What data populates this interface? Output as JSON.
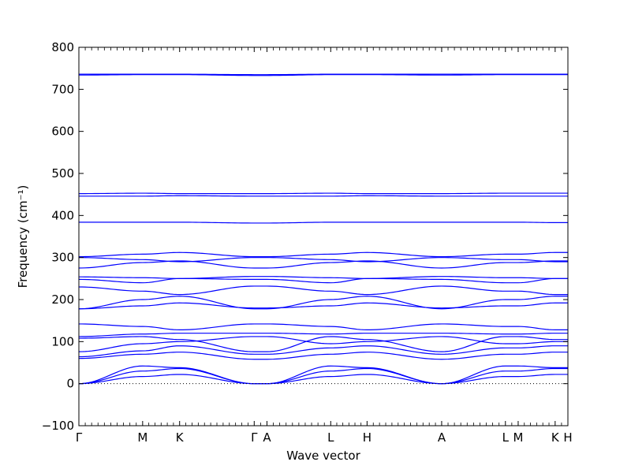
{
  "chart_data": {
    "type": "line",
    "xlabel": "Wave vector",
    "ylabel": "Frequency (cm⁻¹)",
    "ylim": [
      -100,
      800
    ],
    "yticks": [
      -100,
      0,
      100,
      200,
      300,
      400,
      500,
      600,
      700,
      800
    ],
    "xticks": [
      "Γ",
      "M",
      "K",
      "Γ",
      "A",
      "L",
      "H",
      "A",
      "L",
      "M",
      "K",
      "H"
    ],
    "xtick_positions": [
      0.0,
      1.0,
      1.58,
      2.75,
      2.95,
      3.95,
      4.52,
      5.69,
      6.69,
      6.89,
      7.47,
      7.67
    ],
    "x_range": [
      0.0,
      7.67
    ],
    "zero_line": "dotted",
    "grid": false,
    "line_color": "#0000ff",
    "series": [
      {
        "x": [
          0,
          1,
          1.58,
          2.75,
          2.95,
          3.95,
          4.52,
          5.69,
          6.69,
          6.89,
          7.47,
          7.67
        ],
        "values": [
          0,
          17,
          22,
          0,
          0,
          17,
          22,
          0,
          17,
          17,
          22,
          22
        ]
      },
      {
        "x": [
          0,
          1,
          1.58,
          2.75,
          2.95,
          3.95,
          4.52,
          5.69,
          6.69,
          6.89,
          7.47,
          7.67
        ],
        "values": [
          0,
          30,
          36,
          0,
          0,
          30,
          36,
          0,
          30,
          30,
          36,
          36
        ]
      },
      {
        "x": [
          0,
          1,
          1.58,
          2.75,
          2.95,
          3.95,
          4.52,
          5.69,
          6.69,
          6.89,
          7.47,
          7.67
        ],
        "values": [
          0,
          42,
          38,
          0,
          0,
          42,
          38,
          0,
          42,
          42,
          38,
          38
        ]
      },
      {
        "x": [
          0,
          1,
          1.58,
          2.75,
          2.95,
          3.95,
          4.52,
          5.69,
          6.69,
          6.89,
          7.47,
          7.67
        ],
        "values": [
          60,
          70,
          75,
          58,
          58,
          70,
          75,
          58,
          70,
          70,
          75,
          75
        ]
      },
      {
        "x": [
          0,
          1,
          1.58,
          2.75,
          2.95,
          3.95,
          4.52,
          5.69,
          6.69,
          6.89,
          7.47,
          7.67
        ],
        "values": [
          64,
          78,
          90,
          70,
          70,
          85,
          90,
          70,
          85,
          85,
          90,
          90
        ]
      },
      {
        "x": [
          0,
          1,
          1.58,
          2.75,
          2.95,
          3.95,
          4.52,
          5.69,
          6.69,
          6.89,
          7.47,
          7.67
        ],
        "values": [
          76,
          95,
          100,
          112,
          112,
          95,
          100,
          112,
          95,
          95,
          100,
          100
        ]
      },
      {
        "x": [
          0,
          1,
          1.58,
          2.75,
          2.95,
          3.95,
          4.52,
          5.69,
          6.69,
          6.89,
          7.47,
          7.67
        ],
        "values": [
          108,
          112,
          105,
          76,
          76,
          112,
          105,
          76,
          112,
          112,
          105,
          105
        ]
      },
      {
        "x": [
          0,
          1,
          1.58,
          2.75,
          2.95,
          3.95,
          4.52,
          5.69,
          6.69,
          6.89,
          7.47,
          7.67
        ],
        "values": [
          112,
          118,
          120,
          120,
          120,
          118,
          120,
          120,
          118,
          118,
          120,
          120
        ]
      },
      {
        "x": [
          0,
          1,
          1.58,
          2.75,
          2.95,
          3.95,
          4.52,
          5.69,
          6.69,
          6.89,
          7.47,
          7.67
        ],
        "values": [
          142,
          136,
          128,
          142,
          142,
          136,
          128,
          142,
          136,
          136,
          128,
          128
        ]
      },
      {
        "x": [
          0,
          1,
          1.58,
          2.75,
          2.95,
          3.95,
          4.52,
          5.69,
          6.69,
          6.89,
          7.47,
          7.67
        ],
        "values": [
          178,
          200,
          208,
          178,
          178,
          200,
          208,
          178,
          200,
          200,
          208,
          208
        ]
      },
      {
        "x": [
          0,
          1,
          1.58,
          2.75,
          2.95,
          3.95,
          4.52,
          5.69,
          6.69,
          6.89,
          7.47,
          7.67
        ],
        "values": [
          178,
          185,
          192,
          180,
          180,
          185,
          192,
          180,
          185,
          185,
          192,
          192
        ]
      },
      {
        "x": [
          0,
          1,
          1.58,
          2.75,
          2.95,
          3.95,
          4.52,
          5.69,
          6.69,
          6.89,
          7.47,
          7.67
        ],
        "values": [
          230,
          220,
          212,
          232,
          232,
          220,
          212,
          232,
          220,
          220,
          212,
          212
        ]
      },
      {
        "x": [
          0,
          1,
          1.58,
          2.75,
          2.95,
          3.95,
          4.52,
          5.69,
          6.69,
          6.89,
          7.47,
          7.67
        ],
        "values": [
          248,
          240,
          250,
          248,
          248,
          240,
          250,
          248,
          240,
          240,
          250,
          250
        ]
      },
      {
        "x": [
          0,
          1,
          1.58,
          2.75,
          2.95,
          3.95,
          4.52,
          5.69,
          6.69,
          6.89,
          7.47,
          7.67
        ],
        "values": [
          254,
          252,
          250,
          255,
          255,
          252,
          250,
          255,
          252,
          252,
          250,
          250
        ]
      },
      {
        "x": [
          0,
          1,
          1.58,
          2.75,
          2.95,
          3.95,
          4.52,
          5.69,
          6.69,
          6.89,
          7.47,
          7.67
        ],
        "values": [
          275,
          288,
          292,
          275,
          275,
          288,
          292,
          275,
          288,
          288,
          292,
          292
        ]
      },
      {
        "x": [
          0,
          1,
          1.58,
          2.75,
          2.95,
          3.95,
          4.52,
          5.69,
          6.69,
          6.89,
          7.47,
          7.67
        ],
        "values": [
          300,
          295,
          290,
          300,
          300,
          295,
          290,
          300,
          295,
          295,
          290,
          290
        ]
      },
      {
        "x": [
          0,
          1,
          1.58,
          2.75,
          2.95,
          3.95,
          4.52,
          5.69,
          6.69,
          6.89,
          7.47,
          7.67
        ],
        "values": [
          302,
          308,
          312,
          302,
          302,
          308,
          312,
          302,
          308,
          308,
          312,
          312
        ]
      },
      {
        "x": [
          0,
          1,
          1.58,
          2.75,
          2.95,
          3.95,
          4.52,
          5.69,
          6.69,
          6.89,
          7.47,
          7.67
        ],
        "values": [
          384,
          384,
          384,
          382,
          382,
          384,
          384,
          384,
          384,
          384,
          383,
          383
        ]
      },
      {
        "x": [
          0,
          1,
          1.58,
          2.75,
          2.95,
          3.95,
          4.52,
          5.69,
          6.69,
          6.89,
          7.47,
          7.67
        ],
        "values": [
          446,
          446,
          447,
          446,
          446,
          446,
          447,
          446,
          446,
          446,
          446,
          446
        ]
      },
      {
        "x": [
          0,
          1,
          1.58,
          2.75,
          2.95,
          3.95,
          4.52,
          5.69,
          6.69,
          6.89,
          7.47,
          7.67
        ],
        "values": [
          452,
          453,
          452,
          452,
          452,
          453,
          452,
          452,
          453,
          453,
          453,
          453
        ]
      },
      {
        "x": [
          0,
          1,
          1.58,
          2.75,
          2.95,
          3.95,
          4.52,
          5.69,
          6.69,
          6.89,
          7.47,
          7.67
        ],
        "values": [
          734,
          735,
          735,
          733,
          733,
          735,
          735,
          734,
          735,
          735,
          735,
          735
        ]
      },
      {
        "x": [
          0,
          1,
          1.58,
          2.75,
          2.95,
          3.95,
          4.52,
          5.69,
          6.69,
          6.89,
          7.47,
          7.67
        ],
        "values": [
          736,
          736,
          736,
          735,
          735,
          736,
          736,
          736,
          736,
          736,
          736,
          736
        ]
      }
    ]
  }
}
